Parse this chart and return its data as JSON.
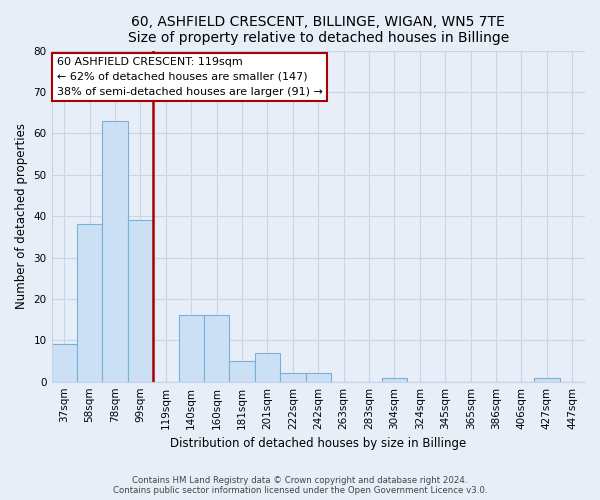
{
  "title": "60, ASHFIELD CRESCENT, BILLINGE, WIGAN, WN5 7TE",
  "subtitle": "Size of property relative to detached houses in Billinge",
  "xlabel": "Distribution of detached houses by size in Billinge",
  "ylabel": "Number of detached properties",
  "bar_labels": [
    "37sqm",
    "58sqm",
    "78sqm",
    "99sqm",
    "119sqm",
    "140sqm",
    "160sqm",
    "181sqm",
    "201sqm",
    "222sqm",
    "242sqm",
    "263sqm",
    "283sqm",
    "304sqm",
    "324sqm",
    "345sqm",
    "365sqm",
    "386sqm",
    "406sqm",
    "427sqm",
    "447sqm"
  ],
  "bar_values": [
    9,
    38,
    63,
    39,
    0,
    16,
    16,
    5,
    7,
    2,
    2,
    0,
    0,
    1,
    0,
    0,
    0,
    0,
    0,
    1,
    0
  ],
  "bar_color": "#cce0f5",
  "bar_edge_color": "#7ab0d4",
  "vline_color": "#aa0000",
  "ylim": [
    0,
    80
  ],
  "yticks": [
    0,
    10,
    20,
    30,
    40,
    50,
    60,
    70,
    80
  ],
  "ann_line1": "60 ASHFIELD CRESCENT: 119sqm",
  "ann_line2": "← 62% of detached houses are smaller (147)",
  "ann_line3": "38% of semi-detached houses are larger (91) →",
  "footer_line1": "Contains HM Land Registry data © Crown copyright and database right 2024.",
  "footer_line2": "Contains public sector information licensed under the Open Government Licence v3.0.",
  "background_color": "#e8eef8",
  "plot_background_color": "#e8eef8",
  "grid_color": "#c8d4e8"
}
